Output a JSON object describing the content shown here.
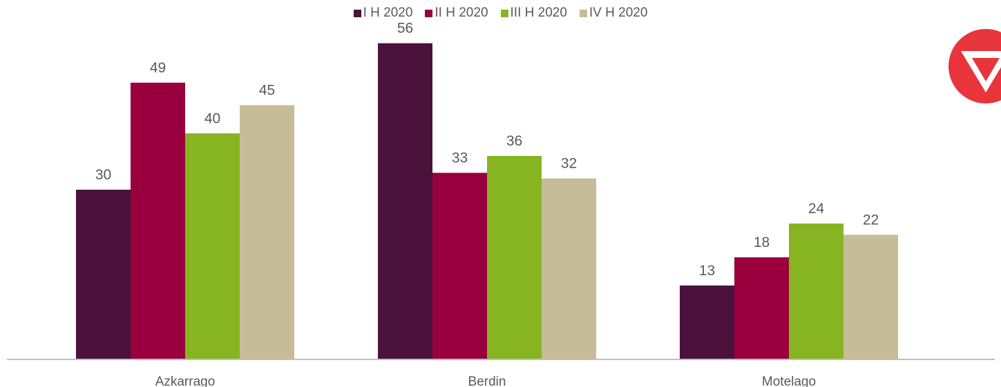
{
  "chart_data": {
    "type": "bar",
    "categories": [
      "Azkarrago",
      "Berdin",
      "Motelago"
    ],
    "series": [
      {
        "name": "I H 2020",
        "values": [
          30,
          56,
          13
        ],
        "color": "#4b123b"
      },
      {
        "name": "II H 2020",
        "values": [
          49,
          33,
          18
        ],
        "color": "#99003d"
      },
      {
        "name": "III H 2020",
        "values": [
          40,
          36,
          24
        ],
        "color": "#86b521"
      },
      {
        "name": "IV H 2020",
        "values": [
          45,
          32,
          22
        ],
        "color": "#c6bd98"
      }
    ],
    "ylim": [
      0,
      60
    ],
    "grid": false,
    "legend_position": "top"
  },
  "colors": {
    "axis": "#bfbfbf",
    "label_text": "#595959",
    "logo": "#e8343b"
  },
  "logo_icon": "red-circle-down-triangle-logo"
}
